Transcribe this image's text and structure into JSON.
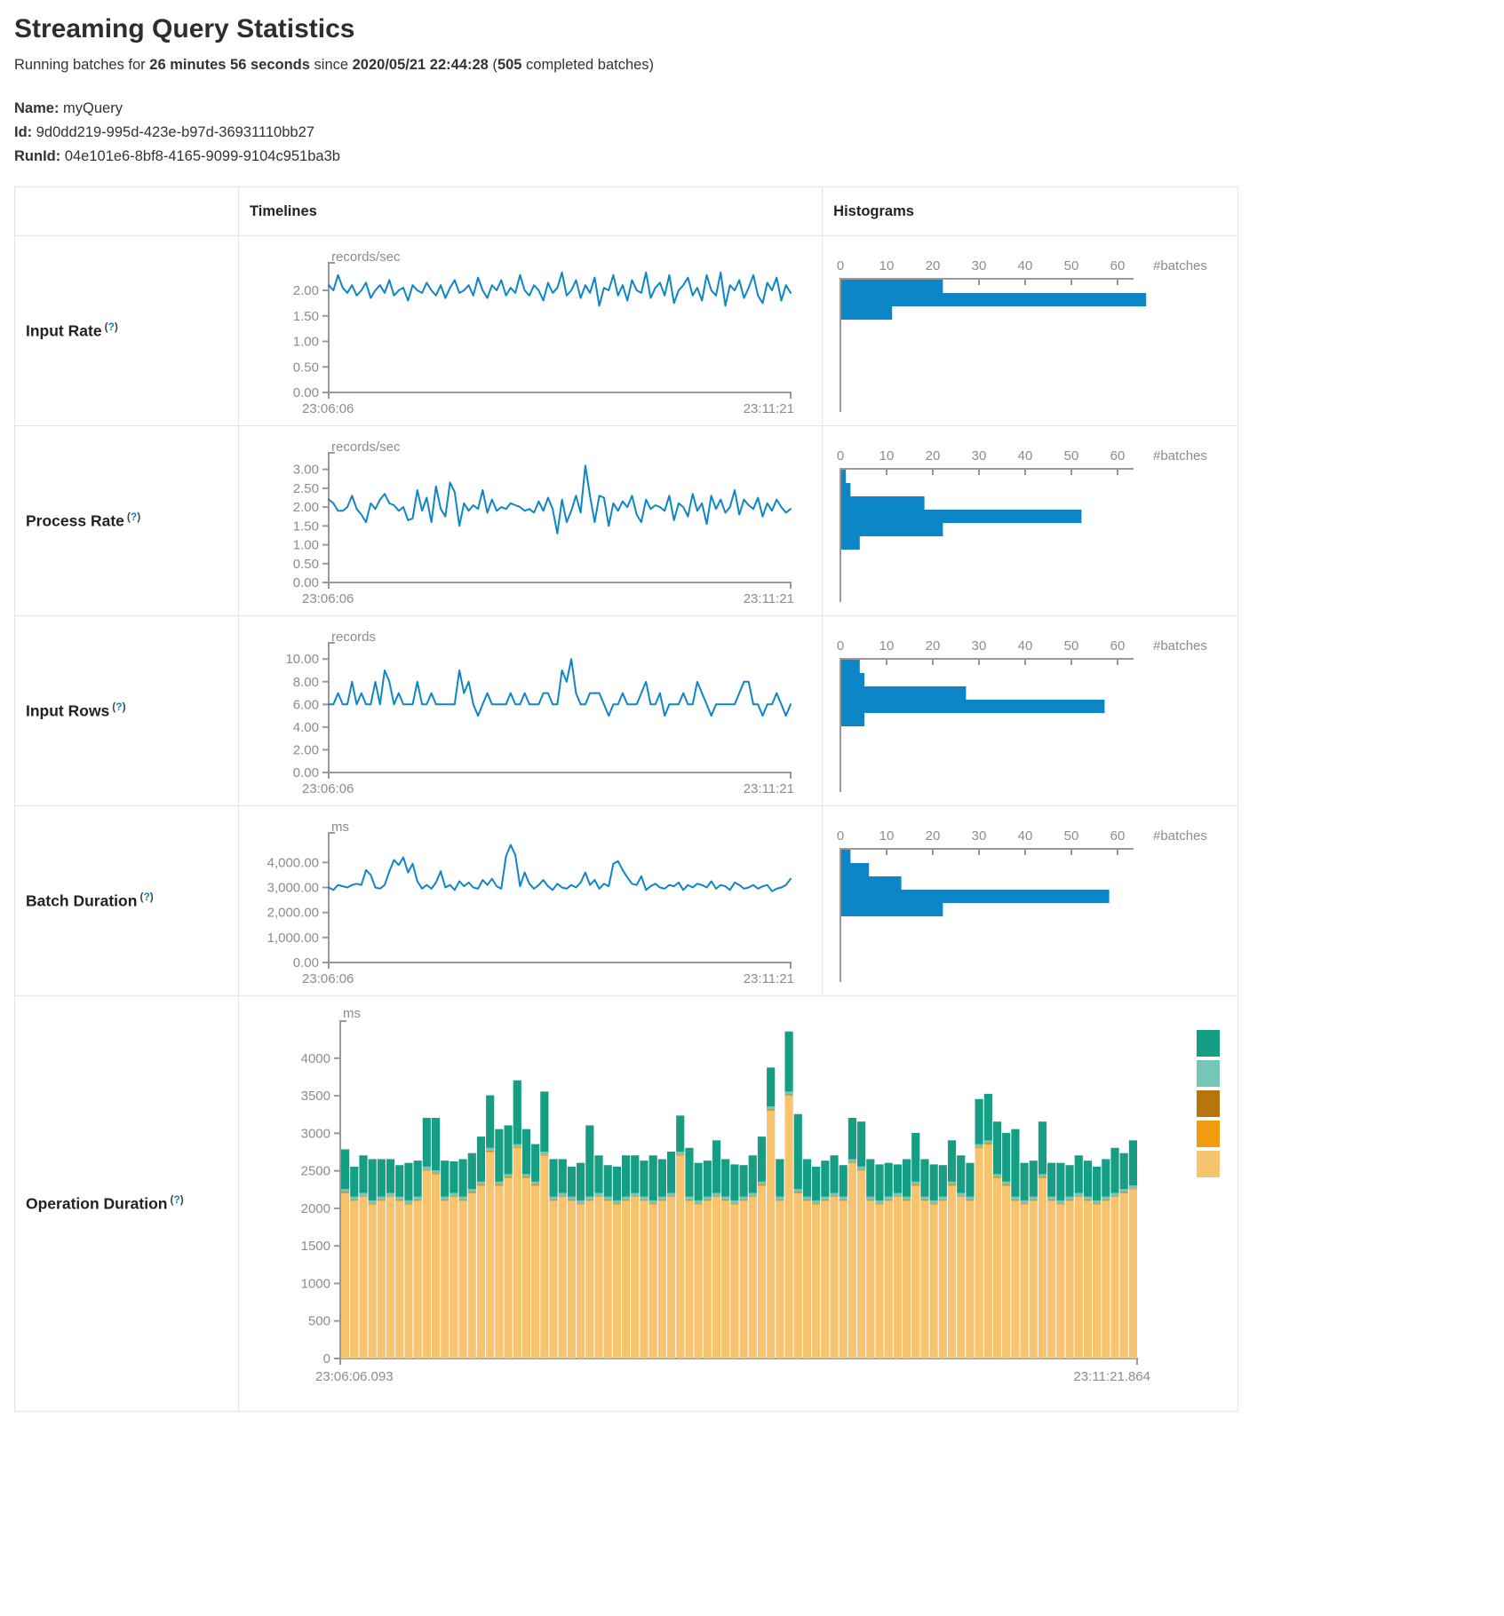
{
  "header": {
    "title": "Streaming Query Statistics",
    "running": {
      "t1": "Running batches for ",
      "b1": "26 minutes 56 seconds",
      "t2": " since ",
      "b2": "2020/05/21 22:44:28",
      "t3": " (",
      "b3": "505",
      "t4": " completed batches)"
    },
    "name_label": "Name:",
    "name_value": " myQuery",
    "id_label": "Id:",
    "id_value": " 9d0dd219-995d-423e-b97d-36931110bb27",
    "runid_label": "RunId:",
    "runid_value": " 04e101e6-8bf8-4165-9099-9104c951ba3b"
  },
  "table": {
    "timelines_header": "Timelines",
    "histograms_header": "Histograms",
    "help": {
      "open": "(",
      "mark": "?",
      "close": ")"
    },
    "row_labels": {
      "input_rate": "Input Rate",
      "process_rate": "Process Rate",
      "input_rows": "Input Rows",
      "batch_duration": "Batch Duration",
      "operation_duration": "Operation Duration"
    }
  },
  "colors": {
    "line_blue": "#0c86c6",
    "hist_blue": "#0c86c6",
    "axis_line": "#999999",
    "axis_text": "#8c8c8c",
    "stack_teal": "#169e85",
    "stack_lightteal": "#74c7b6",
    "stack_darkorange": "#b8750d",
    "stack_orange": "#f29c0f",
    "stack_tan": "#f7c36f"
  },
  "chart_data": {
    "input_rate_timeline": {
      "type": "line",
      "unit": "records/sec",
      "x_start": "23:06:06",
      "x_end": "23:11:21",
      "ymax": 2.4,
      "grid": false,
      "yticks": [
        {
          "v": 2,
          "label": "2.00"
        },
        {
          "v": 1.5,
          "label": "1.50"
        },
        {
          "v": 1,
          "label": "1.00"
        },
        {
          "v": 0.5,
          "label": "0.50"
        },
        {
          "v": 0,
          "label": "0.00"
        }
      ],
      "values": [
        2.1,
        2.0,
        2.3,
        2.05,
        1.95,
        2.1,
        1.9,
        2.0,
        2.15,
        1.85,
        2.0,
        2.1,
        1.95,
        2.2,
        1.9,
        2.0,
        2.05,
        1.8,
        2.1,
        2.0,
        1.95,
        2.15,
        2.0,
        1.9,
        2.1,
        1.85,
        2.05,
        2.2,
        1.95,
        2.0,
        2.1,
        1.9,
        2.25,
        2.0,
        1.85,
        2.1,
        2.0,
        2.2,
        1.9,
        2.05,
        1.95,
        2.3,
        2.0,
        1.9,
        2.1,
        2.0,
        1.8,
        2.15,
        1.95,
        2.05,
        2.35,
        1.9,
        2.0,
        2.2,
        1.85,
        2.1,
        1.95,
        2.25,
        1.7,
        2.05,
        2.0,
        2.3,
        1.9,
        2.1,
        1.8,
        2.2,
        2.0,
        1.95,
        2.35,
        1.85,
        2.05,
        2.15,
        1.9,
        2.3,
        1.75,
        2.0,
        2.1,
        2.25,
        1.9,
        2.05,
        1.8,
        2.3,
        2.0,
        1.9,
        2.35,
        1.7,
        2.1,
        2.0,
        2.2,
        1.85,
        2.05,
        2.3,
        1.9,
        1.75,
        2.15,
        2.0,
        2.25,
        1.8,
        2.1,
        1.95
      ]
    },
    "input_rate_histogram": {
      "type": "hbar",
      "axis_label": "#batches",
      "xticks": [
        0,
        10,
        20,
        30,
        40,
        50,
        60
      ],
      "xmax": 66,
      "values": [
        22,
        66,
        11
      ]
    },
    "process_rate_timeline": {
      "type": "line",
      "unit": "records/sec",
      "x_start": "23:06:06",
      "x_end": "23:11:21",
      "ymax": 3.25,
      "grid": false,
      "yticks": [
        {
          "v": 3,
          "label": "3.00"
        },
        {
          "v": 2.5,
          "label": "2.50"
        },
        {
          "v": 2,
          "label": "2.00"
        },
        {
          "v": 1.5,
          "label": "1.50"
        },
        {
          "v": 1,
          "label": "1.00"
        },
        {
          "v": 0.5,
          "label": "0.50"
        },
        {
          "v": 0,
          "label": "0.00"
        }
      ],
      "values": [
        2.2,
        2.1,
        1.9,
        1.9,
        2.0,
        2.3,
        1.95,
        1.8,
        1.6,
        2.1,
        1.95,
        2.2,
        2.35,
        2.1,
        2.05,
        1.9,
        2.0,
        1.65,
        1.7,
        2.45,
        1.9,
        2.25,
        1.6,
        2.55,
        1.95,
        1.75,
        2.65,
        2.4,
        1.5,
        2.1,
        1.9,
        2.05,
        1.95,
        2.45,
        1.85,
        2.2,
        1.9,
        2.0,
        1.95,
        2.1,
        2.05,
        2.0,
        1.9,
        1.95,
        1.85,
        2.15,
        1.9,
        2.25,
        1.95,
        1.3,
        2.2,
        1.6,
        1.9,
        2.3,
        1.85,
        3.1,
        2.3,
        1.6,
        2.3,
        2.25,
        1.5,
        2.1,
        1.9,
        2.15,
        2.0,
        2.3,
        1.8,
        1.6,
        2.2,
        1.95,
        2.05,
        2.0,
        1.9,
        2.3,
        1.65,
        2.1,
        2.0,
        1.75,
        2.35,
        1.9,
        2.1,
        1.55,
        2.3,
        1.95,
        2.2,
        1.85,
        2.0,
        2.45,
        1.8,
        2.2,
        2.05,
        1.95,
        2.25,
        1.75,
        2.1,
        1.9,
        2.2,
        2.0,
        1.85,
        1.95
      ]
    },
    "process_rate_histogram": {
      "type": "hbar",
      "axis_label": "#batches",
      "xticks": [
        0,
        10,
        20,
        30,
        40,
        50,
        60
      ],
      "xmax": 66,
      "values": [
        1,
        2,
        18,
        52,
        22,
        4
      ]
    },
    "input_rows_timeline": {
      "type": "line",
      "unit": "records",
      "x_start": "23:06:06",
      "x_end": "23:11:21",
      "ymax": 10.8,
      "grid": false,
      "yticks": [
        {
          "v": 10,
          "label": "10.00"
        },
        {
          "v": 8,
          "label": "8.00"
        },
        {
          "v": 6,
          "label": "6.00"
        },
        {
          "v": 4,
          "label": "4.00"
        },
        {
          "v": 2,
          "label": "2.00"
        },
        {
          "v": 0,
          "label": "0.00"
        }
      ],
      "values": [
        6,
        6,
        7,
        6,
        6,
        8,
        6,
        7,
        6,
        6,
        8,
        6,
        9,
        8,
        6,
        7,
        6,
        6,
        6,
        8,
        6,
        6,
        7,
        6,
        6,
        6,
        6,
        6,
        9,
        7,
        8,
        6,
        5,
        6,
        7,
        6,
        6,
        6,
        6,
        7,
        6,
        6,
        7,
        6,
        6,
        6,
        7,
        7,
        6,
        6,
        9,
        8,
        10,
        7,
        6,
        6,
        7,
        7,
        7,
        6,
        5,
        6,
        6,
        7,
        6,
        6,
        6,
        7,
        8,
        6,
        6,
        7,
        5,
        6,
        6,
        6,
        7,
        6,
        6,
        8,
        7,
        6,
        5,
        6,
        6,
        6,
        6,
        6,
        7,
        8,
        8,
        6,
        6,
        5,
        6,
        6,
        7,
        6,
        5,
        6
      ]
    },
    "input_rows_histogram": {
      "type": "hbar",
      "axis_label": "#batches",
      "xticks": [
        0,
        10,
        20,
        30,
        40,
        50,
        60
      ],
      "xmax": 66,
      "values": [
        4,
        5,
        27,
        57,
        5
      ]
    },
    "batch_duration_timeline": {
      "type": "line",
      "unit": "ms",
      "x_start": "23:06:06",
      "x_end": "23:11:21",
      "ymax": 4900,
      "grid": false,
      "yticks": [
        {
          "v": 4000,
          "label": "4,000.00"
        },
        {
          "v": 3000,
          "label": "3,000.00"
        },
        {
          "v": 2000,
          "label": "2,000.00"
        },
        {
          "v": 1000,
          "label": "1,000.00"
        },
        {
          "v": 0,
          "label": "0.00"
        }
      ],
      "values": [
        3000,
        2900,
        3100,
        3050,
        3000,
        3100,
        3150,
        3100,
        3700,
        3500,
        3000,
        2950,
        3100,
        3650,
        4100,
        3900,
        4200,
        3600,
        3950,
        3250,
        2950,
        3100,
        2950,
        3200,
        3650,
        3000,
        3100,
        2900,
        3250,
        3050,
        3200,
        3000,
        2950,
        3300,
        3100,
        3350,
        3050,
        2950,
        4250,
        4700,
        4300,
        3050,
        3600,
        3150,
        2950,
        3100,
        3300,
        3050,
        2900,
        3150,
        3000,
        2950,
        3100,
        3000,
        3200,
        3600,
        3100,
        3300,
        2950,
        3150,
        3050,
        3950,
        4050,
        3700,
        3400,
        3150,
        3100,
        3450,
        2900,
        3050,
        3150,
        3000,
        2950,
        3100,
        3050,
        3200,
        2900,
        3100,
        3000,
        3150,
        3100,
        3000,
        3250,
        2950,
        3100,
        3050,
        2900,
        3200,
        3100,
        2950,
        3000,
        3100,
        2950,
        3050,
        3100,
        2850,
        2950,
        3000,
        3100,
        3350
      ]
    },
    "batch_duration_histogram": {
      "type": "hbar",
      "axis_label": "#batches",
      "xticks": [
        0,
        10,
        20,
        30,
        40,
        50,
        60
      ],
      "xmax": 66,
      "values": [
        2,
        6,
        13,
        58,
        22
      ]
    },
    "operation_duration": {
      "type": "stacked-bar",
      "unit": "ms",
      "x_start": "23:06:06.093",
      "x_end": "23:11:21.864",
      "ymax": 4400,
      "grid": false,
      "legend_position": "right",
      "yticks": [
        {
          "v": 4000,
          "label": "4000"
        },
        {
          "v": 3500,
          "label": "3500"
        },
        {
          "v": 3000,
          "label": "3000"
        },
        {
          "v": 2500,
          "label": "2500"
        },
        {
          "v": 2000,
          "label": "2000"
        },
        {
          "v": 1500,
          "label": "1500"
        },
        {
          "v": 1000,
          "label": "1000"
        },
        {
          "v": 500,
          "label": "500"
        },
        {
          "v": 0,
          "label": "0"
        }
      ],
      "legend_colors": [
        "#169e85",
        "#74c7b6",
        "#b8750d",
        "#f29c0f",
        "#f7c36f"
      ],
      "series_bottom_to_top": [
        {
          "name": "base-segment",
          "color": "#f7c36f",
          "values": [
            2200,
            2100,
            2150,
            2050,
            2100,
            2150,
            2100,
            2050,
            2100,
            2500,
            2450,
            2100,
            2150,
            2100,
            2200,
            2300,
            2750,
            2300,
            2400,
            2800,
            2400,
            2300,
            2700,
            2100,
            2150,
            2100,
            2050,
            2100,
            2150,
            2100,
            2050,
            2100,
            2150,
            2100,
            2050,
            2100,
            2150,
            2700,
            2100,
            2050,
            2100,
            2150,
            2100,
            2050,
            2100,
            2150,
            2300,
            3300,
            2100,
            3500,
            2200,
            2100,
            2050,
            2100,
            2150,
            2100,
            2600,
            2500,
            2100,
            2050,
            2100,
            2150,
            2100,
            2300,
            2100,
            2050,
            2100,
            2300,
            2150,
            2100,
            2800,
            2850,
            2400,
            2300,
            2100,
            2050,
            2100,
            2400,
            2100,
            2050,
            2100,
            2150,
            2100,
            2050,
            2100,
            2150,
            2200,
            2250
          ]
        },
        {
          "name": "sliver-orange",
          "color": "#f29c0f",
          "constant": 12
        },
        {
          "name": "sliver-darkorange",
          "color": "#b8750d",
          "constant": 6
        },
        {
          "name": "sliver-lightteal",
          "color": "#74c7b6",
          "constant": 38
        },
        {
          "name": "top-segment",
          "color": "#169e85",
          "values": [
            530,
            400,
            500,
            550,
            500,
            450,
            420,
            500,
            480,
            650,
            700,
            480,
            420,
            500,
            480,
            600,
            700,
            700,
            650,
            850,
            600,
            500,
            800,
            500,
            450,
            400,
            500,
            950,
            500,
            420,
            450,
            550,
            500,
            480,
            600,
            500,
            550,
            480,
            650,
            500,
            480,
            700,
            500,
            480,
            420,
            500,
            600,
            520,
            500,
            800,
            1000,
            500,
            450,
            480,
            500,
            420,
            550,
            600,
            500,
            480,
            450,
            380,
            500,
            650,
            500,
            480,
            420,
            550,
            500,
            450,
            600,
            620,
            700,
            650,
            900,
            500,
            480,
            700,
            450,
            500,
            420,
            500,
            480,
            450,
            500,
            600,
            480,
            600
          ]
        }
      ]
    }
  }
}
